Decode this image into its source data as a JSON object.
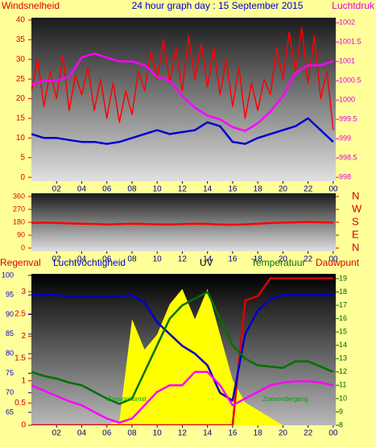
{
  "chart_data": [
    {
      "type": "line",
      "title": "24 hour graph day : 15 September 2015",
      "ylabel": "Windsnelheid",
      "y2label": "Luchtdruk",
      "xlim": [
        0,
        24.2
      ],
      "xticks": [
        {
          "value": 2,
          "label": "02"
        },
        {
          "value": 4,
          "label": "04"
        },
        {
          "value": 6,
          "label": "06"
        },
        {
          "value": 8,
          "label": "08"
        },
        10,
        12,
        14,
        16,
        18,
        20,
        22,
        {
          "value": 24,
          "label": "00"
        }
      ],
      "ylim": [
        -1,
        40.6
      ],
      "yticks": [
        0,
        5,
        10,
        15,
        20,
        25,
        30,
        35,
        40
      ],
      "y2lim": [
        997.9,
        1002.13
      ],
      "y2ticks": [
        998,
        998.5,
        999,
        999.5,
        1000,
        1000.5,
        1001,
        1001.5,
        1002
      ],
      "x": [
        0,
        1,
        2,
        3,
        4,
        5,
        6,
        7,
        8,
        9,
        10,
        11,
        12,
        13,
        14,
        15,
        16,
        17,
        18,
        19,
        20,
        21,
        22,
        23,
        24
      ],
      "series": [
        {
          "color": "#ff0000",
          "axis": "y",
          "x": [
            0,
            0.5,
            1,
            1.5,
            2,
            2.5,
            3,
            3.5,
            4,
            4.5,
            5,
            5.5,
            6,
            6.5,
            7,
            7.5,
            8,
            8.5,
            9,
            9.5,
            10,
            10.5,
            11,
            11.5,
            12,
            12.5,
            13,
            13.5,
            14,
            14.5,
            15,
            15.5,
            16,
            16.5,
            17,
            17.5,
            18,
            18.5,
            19,
            19.5,
            20,
            20.5,
            21,
            21.5,
            22,
            22.5,
            23,
            23.5,
            24
          ],
          "values": [
            22,
            30,
            18,
            27,
            20,
            31,
            17,
            26,
            21,
            28,
            17,
            25,
            15,
            24,
            14,
            22,
            16,
            27,
            22,
            32,
            25,
            35,
            24,
            33,
            22,
            36,
            25,
            34,
            23,
            33,
            21,
            30,
            18,
            28,
            15,
            24,
            17,
            25,
            21,
            33,
            25,
            37,
            27,
            38,
            24,
            36,
            20,
            27,
            12
          ]
        },
        {
          "color": "#0000cc",
          "axis": "y",
          "values": [
            11,
            10,
            10,
            9.5,
            9,
            9,
            8.5,
            9,
            10,
            11,
            12,
            11,
            11.5,
            12,
            14,
            13,
            9,
            8.5,
            10,
            11,
            12,
            13,
            15,
            12,
            9
          ]
        },
        {
          "color": "#ff00ff",
          "axis": "y2",
          "values": [
            1000.4,
            1000.5,
            1000.5,
            1000.6,
            1001.1,
            1001.2,
            1001.1,
            1001.0,
            1001.0,
            1000.9,
            1000.6,
            1000.5,
            1000.1,
            999.8,
            999.6,
            999.5,
            999.3,
            999.2,
            999.4,
            999.7,
            1000.1,
            1000.7,
            1000.9,
            1000.9,
            1001.0
          ]
        }
      ]
    },
    {
      "type": "line",
      "xlim": [
        0,
        24.2
      ],
      "xticks": [
        {
          "value": 2,
          "label": "02"
        },
        {
          "value": 4,
          "label": "04"
        },
        {
          "value": 6,
          "label": "06"
        },
        {
          "value": 8,
          "label": "08"
        },
        10,
        12,
        14,
        16,
        18,
        20,
        22,
        {
          "value": 24,
          "label": "00"
        }
      ],
      "ylim": [
        -22.5,
        382.5
      ],
      "yticks": [
        0,
        90,
        180,
        270,
        360
      ],
      "y2lim": [
        -22.5,
        382.5
      ],
      "y2ticks": [
        {
          "value": 360,
          "label": "N"
        },
        {
          "value": 270,
          "label": "W"
        },
        {
          "value": 180,
          "label": "S"
        },
        {
          "value": 90,
          "label": "E"
        },
        {
          "value": 0,
          "label": "N"
        }
      ],
      "x": [
        0,
        1,
        2,
        3,
        4,
        5,
        6,
        7,
        8,
        9,
        10,
        11,
        12,
        13,
        14,
        15,
        16,
        17,
        18,
        19,
        20,
        21,
        22,
        23,
        24
      ],
      "series": [
        {
          "color": "#ff0000",
          "axis": "y",
          "values": [
            175,
            178,
            176,
            172,
            170,
            168,
            165,
            167,
            170,
            168,
            166,
            165,
            167,
            170,
            168,
            165,
            163,
            166,
            170,
            175,
            178,
            180,
            182,
            180,
            178
          ]
        }
      ]
    },
    {
      "type": "line",
      "xlim": [
        0,
        24.2
      ],
      "xticks": [
        {
          "value": 2,
          "label": "02"
        },
        {
          "value": 4,
          "label": "04"
        },
        {
          "value": 6,
          "label": "06"
        },
        {
          "value": 8,
          "label": "08"
        },
        10,
        12,
        14,
        16,
        18,
        20,
        22,
        {
          "value": 24,
          "label": "00"
        }
      ],
      "ylim": [
        61.7,
        100.4
      ],
      "yticks": [
        65,
        70,
        75,
        80,
        85,
        90,
        95,
        100
      ],
      "y2lim": [
        8,
        19.36
      ],
      "y2ticks": [
        8,
        9,
        10,
        11,
        12,
        13,
        14,
        15,
        16,
        17,
        18,
        19
      ],
      "y3lim": [
        0,
        3.4
      ],
      "y3ticks": [
        0,
        0.5,
        1,
        1.5,
        2,
        2.5,
        3
      ],
      "y4lim": [
        0,
        10
      ],
      "annotations": [
        {
          "text": "Zonsopkomst",
          "x": 7.6
        },
        {
          "text": "Zonsondergang",
          "x": 20.2
        }
      ],
      "x": [
        0,
        1,
        2,
        3,
        4,
        5,
        6,
        7,
        8,
        9,
        10,
        11,
        12,
        13,
        14,
        15,
        16,
        17,
        18,
        19,
        20,
        21,
        22,
        23,
        24
      ],
      "series": [
        {
          "name": "UV",
          "color": "#ffff00",
          "axis": "y4",
          "fill": true,
          "values": [
            0,
            0,
            0,
            0,
            0,
            0,
            0,
            0.3,
            7,
            5,
            6,
            8,
            9,
            7,
            9,
            6,
            3,
            1.5,
            1,
            0.5,
            0,
            0,
            0,
            0,
            0
          ]
        },
        {
          "name": "Regenval",
          "color": "#dd0000",
          "axis": "y3",
          "values": [
            0,
            0,
            0,
            0,
            0,
            0,
            0,
            0,
            0,
            0,
            0,
            0,
            0,
            0,
            0,
            0,
            0,
            2.8,
            2.9,
            3.3,
            3.3,
            3.3,
            3.3,
            3.3,
            3.3
          ]
        },
        {
          "name": "Luchtvochtigheid",
          "color": "#0000cc",
          "axis": "y",
          "values": [
            95,
            95,
            95,
            94.5,
            94.5,
            94.5,
            94.5,
            94.5,
            95,
            93,
            88,
            85,
            82,
            80,
            77,
            70,
            68,
            85,
            91,
            94,
            95,
            95,
            95,
            95,
            95
          ]
        },
        {
          "name": "Temperatuur",
          "color": "#007000",
          "axis": "y2",
          "values": [
            12,
            11.7,
            11.5,
            11.2,
            11,
            10.5,
            10,
            9.6,
            10,
            12,
            14,
            16,
            17,
            17.5,
            18,
            16,
            14,
            13,
            12.5,
            12.4,
            12.3,
            12.8,
            12.8,
            12.4,
            12
          ]
        },
        {
          "name": "Dauwpunt",
          "color": "#ff00ff",
          "axis": "y2",
          "values": [
            11,
            10.6,
            10.2,
            9.8,
            9.5,
            9,
            8.5,
            8.2,
            8.5,
            9.5,
            10.5,
            11,
            11,
            12,
            12,
            11,
            9.5,
            10,
            10.5,
            11,
            11.2,
            11.3,
            11.3,
            11.2,
            11
          ]
        }
      ]
    }
  ]
}
